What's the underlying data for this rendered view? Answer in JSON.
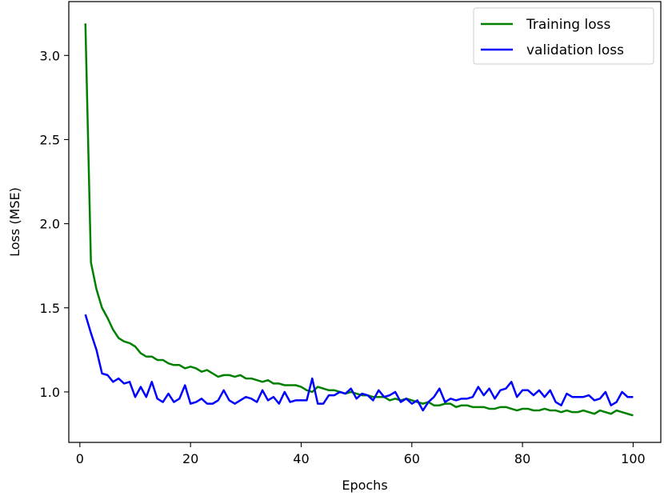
{
  "chart_data": {
    "type": "line",
    "xlabel": "Epochs",
    "ylabel": "Loss (MSE)",
    "xlim": [
      -2,
      105
    ],
    "ylim": [
      0.7,
      3.32
    ],
    "xticks": [
      0,
      20,
      40,
      60,
      80,
      100
    ],
    "yticks": [
      1.0,
      1.5,
      2.0,
      2.5,
      3.0
    ],
    "xtick_labels": [
      "0",
      "20",
      "40",
      "60",
      "80",
      "100"
    ],
    "ytick_labels": [
      "1.0",
      "1.5",
      "2.0",
      "2.5",
      "3.0"
    ],
    "grid": false,
    "legend_position": "upper right",
    "series": [
      {
        "name": "Training loss",
        "color": "#008000",
        "x": [
          1,
          2,
          3,
          4,
          5,
          6,
          7,
          8,
          9,
          10,
          11,
          12,
          13,
          14,
          15,
          16,
          17,
          18,
          19,
          20,
          21,
          22,
          23,
          24,
          25,
          26,
          27,
          28,
          29,
          30,
          31,
          32,
          33,
          34,
          35,
          36,
          37,
          38,
          39,
          40,
          41,
          42,
          43,
          44,
          45,
          46,
          47,
          48,
          49,
          50,
          51,
          52,
          53,
          54,
          55,
          56,
          57,
          58,
          59,
          60,
          61,
          62,
          63,
          64,
          65,
          66,
          67,
          68,
          69,
          70,
          71,
          72,
          73,
          74,
          75,
          76,
          77,
          78,
          79,
          80,
          81,
          82,
          83,
          84,
          85,
          86,
          87,
          88,
          89,
          90,
          91,
          92,
          93,
          94,
          95,
          96,
          97,
          98,
          99,
          100
        ],
        "values": [
          3.19,
          1.77,
          1.61,
          1.5,
          1.44,
          1.37,
          1.32,
          1.3,
          1.29,
          1.27,
          1.23,
          1.21,
          1.21,
          1.19,
          1.19,
          1.17,
          1.16,
          1.16,
          1.14,
          1.15,
          1.14,
          1.12,
          1.13,
          1.11,
          1.09,
          1.1,
          1.1,
          1.09,
          1.1,
          1.08,
          1.08,
          1.07,
          1.06,
          1.07,
          1.05,
          1.05,
          1.04,
          1.04,
          1.04,
          1.03,
          1.01,
          1.0,
          1.03,
          1.02,
          1.01,
          1.01,
          1.0,
          0.99,
          1.0,
          0.99,
          0.98,
          0.98,
          0.97,
          0.97,
          0.97,
          0.95,
          0.96,
          0.95,
          0.96,
          0.95,
          0.94,
          0.93,
          0.94,
          0.92,
          0.92,
          0.93,
          0.93,
          0.91,
          0.92,
          0.92,
          0.91,
          0.91,
          0.91,
          0.9,
          0.9,
          0.91,
          0.91,
          0.9,
          0.89,
          0.9,
          0.9,
          0.89,
          0.89,
          0.9,
          0.89,
          0.89,
          0.88,
          0.89,
          0.88,
          0.88,
          0.89,
          0.88,
          0.87,
          0.89,
          0.88,
          0.87,
          0.89,
          0.88,
          0.87,
          0.86
        ]
      },
      {
        "name": "validation loss",
        "color": "#0000ff",
        "x": [
          1,
          2,
          3,
          4,
          5,
          6,
          7,
          8,
          9,
          10,
          11,
          12,
          13,
          14,
          15,
          16,
          17,
          18,
          19,
          20,
          21,
          22,
          23,
          24,
          25,
          26,
          27,
          28,
          29,
          30,
          31,
          32,
          33,
          34,
          35,
          36,
          37,
          38,
          39,
          40,
          41,
          42,
          43,
          44,
          45,
          46,
          47,
          48,
          49,
          50,
          51,
          52,
          53,
          54,
          55,
          56,
          57,
          58,
          59,
          60,
          61,
          62,
          63,
          64,
          65,
          66,
          67,
          68,
          69,
          70,
          71,
          72,
          73,
          74,
          75,
          76,
          77,
          78,
          79,
          80,
          81,
          82,
          83,
          84,
          85,
          86,
          87,
          88,
          89,
          90,
          91,
          92,
          93,
          94,
          95,
          96,
          97,
          98,
          99,
          100
        ],
        "values": [
          1.46,
          1.35,
          1.25,
          1.11,
          1.1,
          1.06,
          1.08,
          1.05,
          1.06,
          0.97,
          1.03,
          0.97,
          1.06,
          0.96,
          0.94,
          0.99,
          0.94,
          0.96,
          1.04,
          0.93,
          0.94,
          0.96,
          0.93,
          0.93,
          0.95,
          1.01,
          0.95,
          0.93,
          0.95,
          0.97,
          0.96,
          0.94,
          1.01,
          0.95,
          0.97,
          0.93,
          1.0,
          0.94,
          0.95,
          0.95,
          0.95,
          1.08,
          0.93,
          0.93,
          0.98,
          0.98,
          1.0,
          0.99,
          1.02,
          0.96,
          0.99,
          0.98,
          0.95,
          1.01,
          0.97,
          0.98,
          1.0,
          0.94,
          0.96,
          0.93,
          0.95,
          0.89,
          0.94,
          0.97,
          1.02,
          0.94,
          0.96,
          0.95,
          0.96,
          0.96,
          0.97,
          1.03,
          0.98,
          1.02,
          0.96,
          1.01,
          1.02,
          1.06,
          0.97,
          1.01,
          1.01,
          0.98,
          1.01,
          0.97,
          1.01,
          0.94,
          0.92,
          0.99,
          0.97,
          0.97,
          0.97,
          0.98,
          0.95,
          0.96,
          1.0,
          0.92,
          0.94,
          1.0,
          0.97,
          0.97
        ]
      }
    ]
  }
}
